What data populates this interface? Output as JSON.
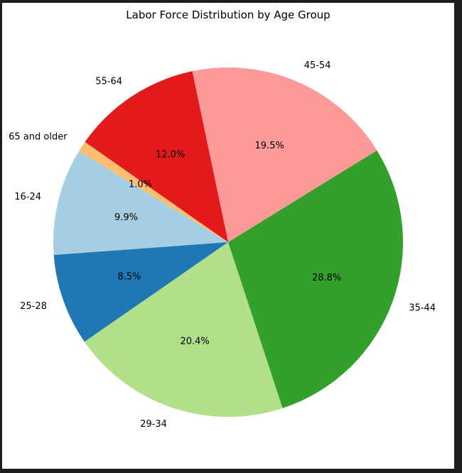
{
  "chart_data": {
    "type": "pie",
    "title": "Labor Force Distribution by Age Group",
    "start_angle_deg": 145,
    "direction": "counterclockwise",
    "slices": [
      {
        "label": "65 and older",
        "value": 1.0,
        "pct_label": "1.0%",
        "color": "#fdbf6f"
      },
      {
        "label": "16-24",
        "value": 9.9,
        "pct_label": "9.9%",
        "color": "#a6cee3"
      },
      {
        "label": "25-28",
        "value": 8.5,
        "pct_label": "8.5%",
        "color": "#1f78b4"
      },
      {
        "label": "29-34",
        "value": 20.4,
        "pct_label": "20.4%",
        "color": "#b2df8a"
      },
      {
        "label": "35-44",
        "value": 28.8,
        "pct_label": "28.8%",
        "color": "#33a02c"
      },
      {
        "label": "45-54",
        "value": 19.5,
        "pct_label": "19.5%",
        "color": "#fb9a99"
      },
      {
        "label": "55-64",
        "value": 12.0,
        "pct_label": "12.0%",
        "color": "#e31a1c"
      }
    ]
  }
}
